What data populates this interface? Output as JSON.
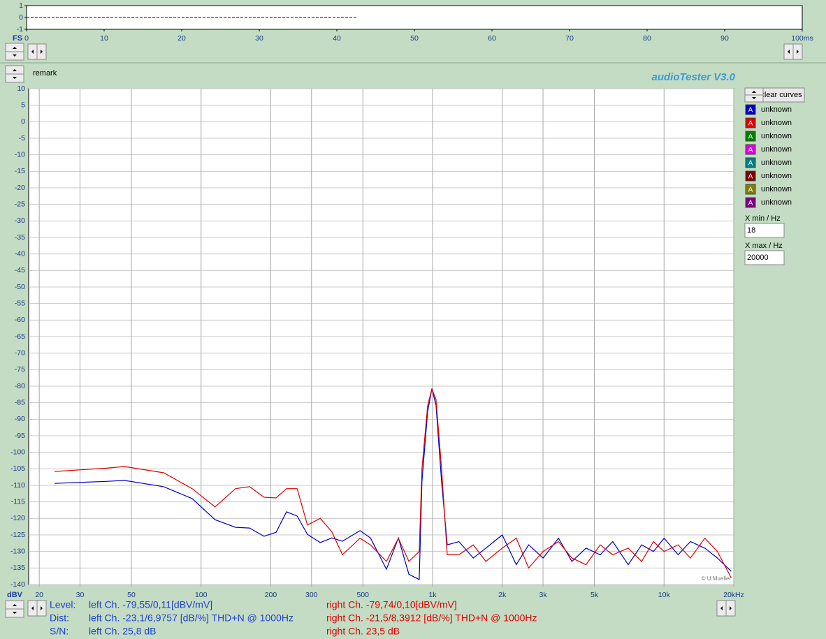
{
  "app": {
    "title": "audioTester  V3.0",
    "remark": "remark",
    "clear_button": "clear curves",
    "xmin_label": "X min / Hz",
    "xmin_value": "18",
    "xmax_label": "X max / Hz",
    "xmax_value": "20000",
    "copyright": "© U.Mueller",
    "legend_slots": [
      {
        "icon": "A",
        "label": "unknown",
        "color": "#008000"
      },
      {
        "icon": "A",
        "label": "unknown",
        "color": "#e000e0"
      },
      {
        "icon": "A",
        "label": "unknown",
        "color": "#008080"
      },
      {
        "icon": "A",
        "label": "unknown",
        "color": "#800000"
      },
      {
        "icon": "A",
        "label": "unknown",
        "color": "#808000"
      },
      {
        "icon": "A",
        "label": "unknown",
        "color": "#800080"
      }
    ],
    "results": {
      "labels": [
        "Level:",
        "Dist:",
        "S/N:"
      ],
      "left": [
        "left Ch. -79,55/0,11[dBV/mV]",
        "left Ch. -23,1/6,9757 [dB/%] THD+N  @ 1000Hz",
        "left Ch. 25,8 dB"
      ],
      "right": [
        "right Ch. -79,74/0,10[dBV/mV]",
        "right Ch. -21,5/8,3912 [dB/%] THD+N  @ 1000Hz",
        "right Ch. 23,5 dB"
      ],
      "left_color": "#1f3fd0",
      "right_color": "#e00000"
    }
  },
  "chart_data": [
    {
      "type": "line",
      "y_label": "FS",
      "xlim": [
        0,
        100
      ],
      "ylim": [
        -1,
        1
      ],
      "yticks": [
        1,
        0,
        -1
      ],
      "xticks": [
        0,
        10,
        20,
        30,
        40,
        50,
        60,
        70,
        80,
        90,
        {
          "value": 100,
          "label": "100ms"
        }
      ],
      "x": [
        0,
        42.5
      ],
      "series": [
        {
          "name": "signal",
          "color": "#d00000",
          "dashed": true,
          "values": [
            0,
            0
          ]
        }
      ]
    },
    {
      "type": "line",
      "y_label": "dBV",
      "log_x": true,
      "grid": true,
      "xlim": [
        18,
        20000
      ],
      "ylim": [
        -140,
        10
      ],
      "yticks": [
        10,
        5,
        0,
        -5,
        -10,
        -15,
        -20,
        -25,
        -30,
        -35,
        -40,
        -45,
        -50,
        -55,
        -60,
        -65,
        -70,
        -75,
        -80,
        -85,
        -90,
        -95,
        -100,
        -105,
        -110,
        -115,
        -120,
        -125,
        -130,
        -135,
        -140
      ],
      "xticks": [
        20,
        30,
        50,
        100,
        200,
        300,
        500,
        {
          "value": 1000,
          "label": "1k"
        },
        {
          "value": 2000,
          "label": "2k"
        },
        {
          "value": 3000,
          "label": "3k"
        },
        {
          "value": 5000,
          "label": "5k"
        },
        {
          "value": 10000,
          "label": "10k"
        },
        {
          "value": 20000,
          "label": "20kHz"
        }
      ],
      "x": [
        23.3,
        39,
        46.6,
        69,
        91.5,
        115,
        141,
        162,
        187,
        211,
        234,
        260,
        288,
        327,
        367,
        408,
        486,
        539,
        632,
        712,
        790,
        876,
        900,
        952,
        993,
        1035,
        1094,
        1157,
        1300,
        1500,
        1700,
        2000,
        2300,
        2600,
        3000,
        3500,
        4000,
        4600,
        5300,
        6000,
        7000,
        8000,
        9000,
        10000,
        11500,
        13000,
        15000,
        17000,
        19500
      ],
      "series": [
        {
          "name": "unknown",
          "icon": "A",
          "color": "#0000c8",
          "values": [
            -109.4,
            -108.8,
            -108.5,
            -110.4,
            -114,
            -120.4,
            -122.7,
            -122.9,
            -125.4,
            -124.2,
            -118,
            -119.3,
            -124.8,
            -127.3,
            -125.9,
            -126.9,
            -123.7,
            -125.9,
            -135.4,
            -125.9,
            -136.9,
            -138.5,
            -108.9,
            -87.8,
            -80.8,
            -85.7,
            -108.9,
            -128,
            -127,
            -132,
            -129,
            -125,
            -134,
            -128,
            -132,
            -126,
            -133,
            -129,
            -131,
            -127,
            -134,
            -128,
            -130,
            -126,
            -131,
            -127,
            -129,
            -132,
            -136
          ]
        },
        {
          "name": "unknown",
          "icon": "A",
          "color": "#e00000",
          "values": [
            -105.8,
            -104.8,
            -104.3,
            -106.2,
            -111,
            -116.5,
            -111,
            -110.4,
            -113.6,
            -113.8,
            -111,
            -111,
            -122,
            -120,
            -124,
            -131,
            -126,
            -128,
            -133,
            -126,
            -133,
            -130,
            -105,
            -86,
            -80.8,
            -84,
            -105,
            -131,
            -131,
            -128,
            -133,
            -129,
            -126,
            -135,
            -130,
            -127,
            -132,
            -134,
            -128,
            -131,
            -129,
            -133,
            -127,
            -130,
            -128,
            -132,
            -126,
            -130,
            -138
          ]
        }
      ]
    }
  ]
}
